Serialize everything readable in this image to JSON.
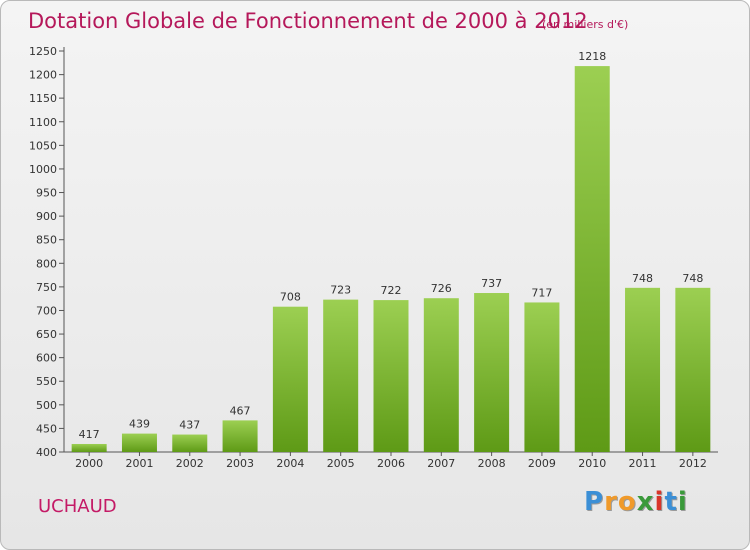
{
  "chart_data": {
    "type": "bar",
    "title": "Dotation Globale de Fonctionnement de 2000 à 2012",
    "subtitle": "(en milliers d'€)",
    "categories": [
      "2000",
      "2001",
      "2002",
      "2003",
      "2004",
      "2005",
      "2006",
      "2007",
      "2008",
      "2009",
      "2010",
      "2011",
      "2012"
    ],
    "values": [
      417,
      439,
      437,
      467,
      708,
      723,
      722,
      726,
      737,
      717,
      1218,
      748,
      748
    ],
    "ylim": [
      400,
      1250
    ],
    "ytick_step": 50,
    "grid": false,
    "bar_color_top": "#9ccf52",
    "bar_color_bottom": "#5e9a16"
  },
  "commune": "UCHAUD",
  "logo": {
    "letters": [
      "P",
      "r",
      "o",
      "x",
      "i",
      "t",
      "i"
    ],
    "colors": [
      "#3b8fd6",
      "#f09a2a",
      "#f09a2a",
      "#3a9a3a",
      "#d9352a",
      "#3b8fd6",
      "#3a9a3a"
    ]
  }
}
